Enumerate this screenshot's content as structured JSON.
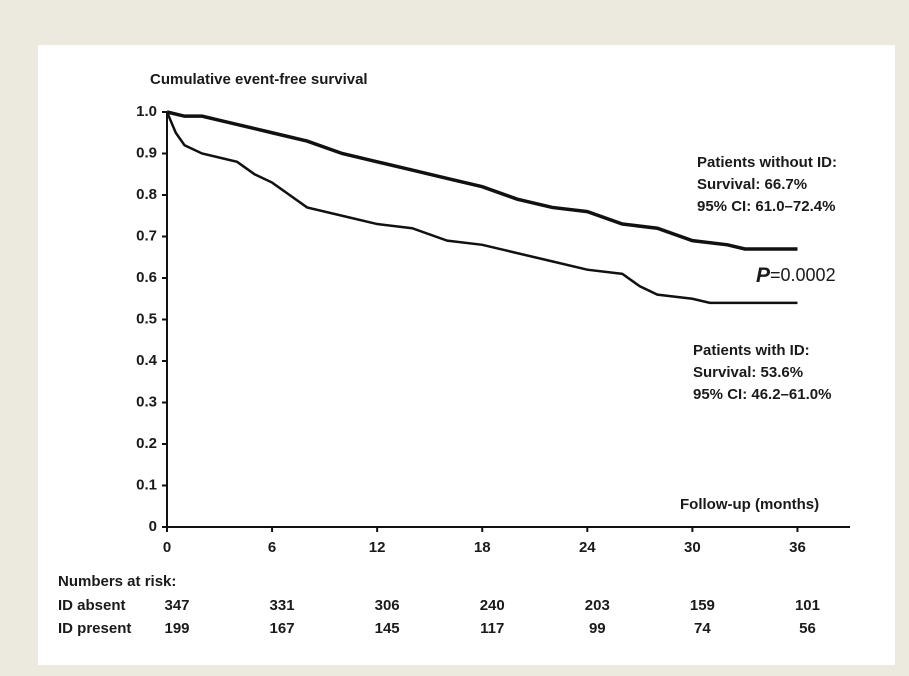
{
  "chart_data": {
    "type": "line",
    "title": "Cumulative event-free survival",
    "x_label": "Follow-up (months)",
    "xlim": [
      0,
      39
    ],
    "xticks": [
      0,
      6,
      12,
      18,
      24,
      30,
      36
    ],
    "ylim": [
      0,
      1
    ],
    "yticks": [
      0,
      0.1,
      0.2,
      0.3,
      0.4,
      0.5,
      0.6,
      0.7,
      0.8,
      0.9,
      {
        "value": 1,
        "label": "1.0"
      }
    ],
    "series": [
      {
        "name": "Patients without ID",
        "color": "#111111",
        "x": [
          0,
          1,
          2,
          3,
          4,
          5,
          6,
          8,
          10,
          12,
          14,
          16,
          18,
          20,
          22,
          24,
          26,
          28,
          30,
          32,
          33,
          36
        ],
        "values": [
          1.0,
          0.99,
          0.99,
          0.98,
          0.97,
          0.96,
          0.95,
          0.93,
          0.9,
          0.88,
          0.86,
          0.84,
          0.82,
          0.79,
          0.77,
          0.76,
          0.73,
          0.72,
          0.69,
          0.68,
          0.67,
          0.67
        ]
      },
      {
        "name": "Patients with ID",
        "color": "#111111",
        "x": [
          0,
          0.5,
          1,
          2,
          3,
          4,
          5,
          6,
          7,
          8,
          10,
          12,
          14,
          16,
          18,
          20,
          22,
          24,
          26,
          27,
          28,
          30,
          31,
          36
        ],
        "values": [
          1.0,
          0.95,
          0.92,
          0.9,
          0.89,
          0.88,
          0.85,
          0.83,
          0.8,
          0.77,
          0.75,
          0.73,
          0.72,
          0.69,
          0.68,
          0.66,
          0.64,
          0.62,
          0.61,
          0.58,
          0.56,
          0.55,
          0.54,
          0.54
        ]
      }
    ],
    "annotations": [
      {
        "lines": [
          "Patients without ID:",
          "Survival: 66.7%",
          "95% CI: 61.0–72.4%"
        ]
      },
      {
        "lines": [
          "Patients with ID:",
          "Survival: 53.6%",
          "95% CI: 46.2–61.0%"
        ]
      }
    ],
    "p_value": {
      "symbol": "P",
      "text": "=0.0002"
    },
    "risk_table": {
      "title": "Numbers at risk:",
      "rows": [
        {
          "label": "ID absent",
          "values": [
            347,
            331,
            306,
            240,
            203,
            159,
            101
          ]
        },
        {
          "label": "ID present",
          "values": [
            199,
            167,
            145,
            117,
            99,
            74,
            56
          ]
        }
      ]
    }
  }
}
